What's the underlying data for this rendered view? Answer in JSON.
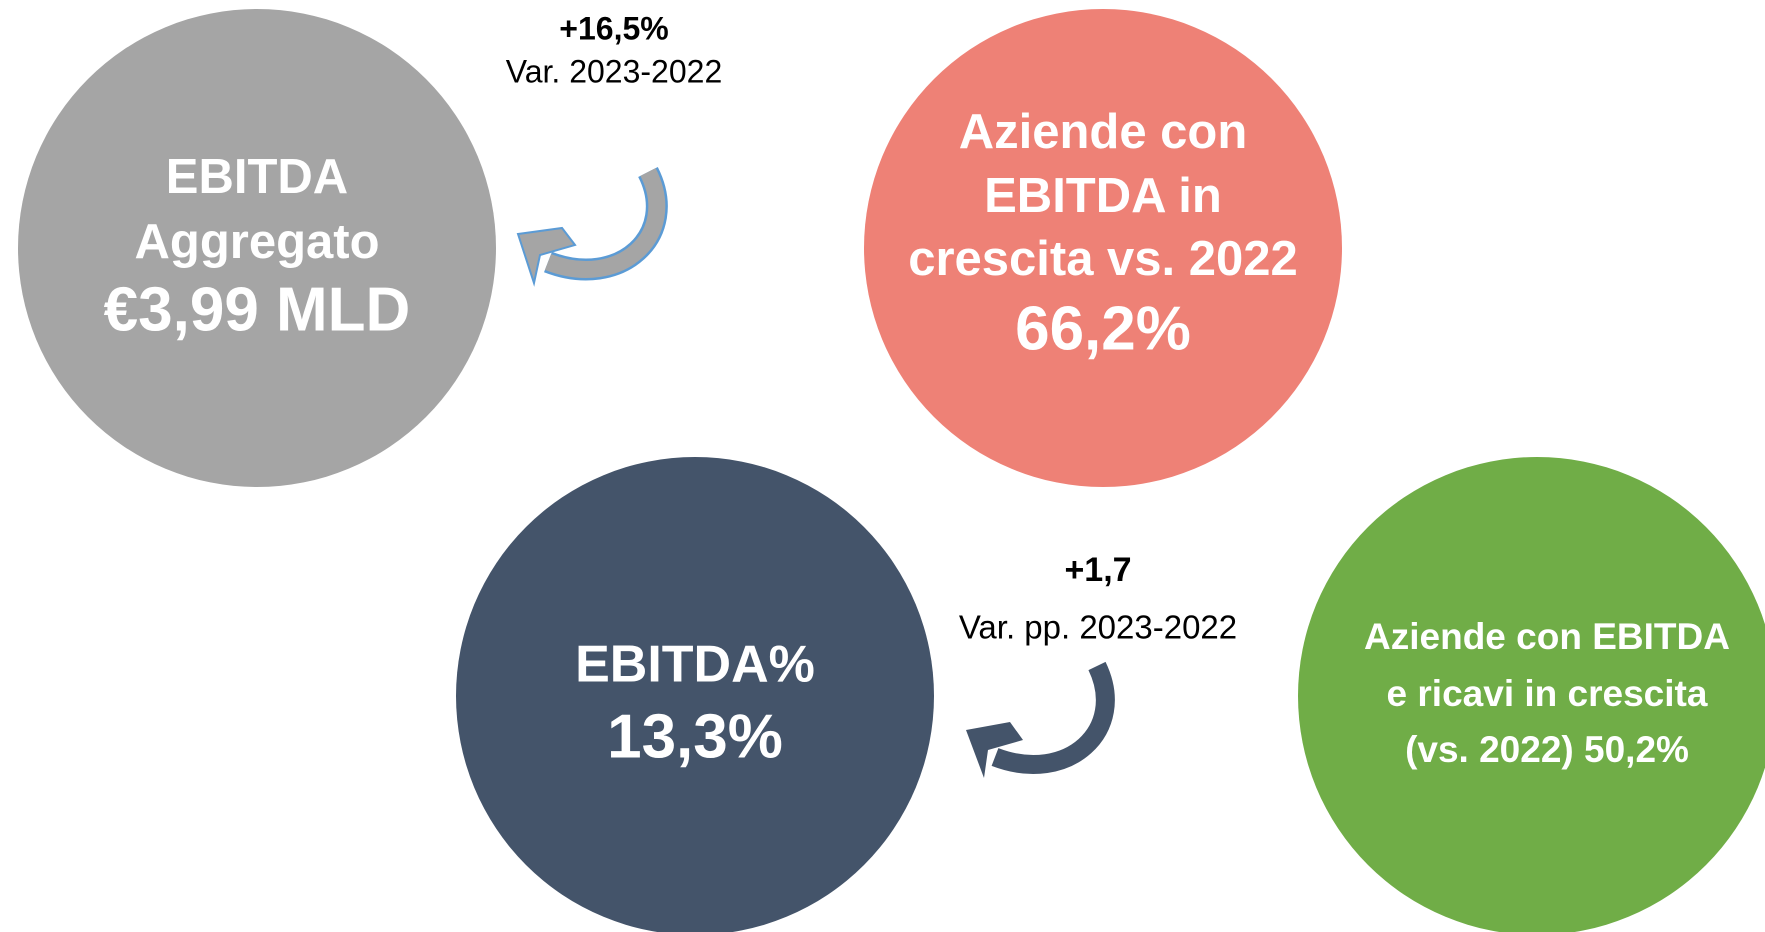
{
  "circles": [
    {
      "lines": [
        "EBITDA",
        "Aggregato",
        "€3,99 MLD"
      ]
    },
    {
      "lines": [
        "Aziende con",
        "EBITDA in",
        "crescita vs. 2022",
        "66,2%"
      ]
    },
    {
      "lines": [
        "EBITDA%",
        "13,3%"
      ]
    },
    {
      "lines": [
        "Aziende con EBITDA",
        "e ricavi in crescita",
        "(vs. 2022) 50,2%"
      ]
    }
  ],
  "annotations": [
    {
      "value": "+16,5%",
      "label": "Var. 2023-2022"
    },
    {
      "value": "+1,7",
      "label": "Var. pp. 2023-2022"
    }
  ]
}
